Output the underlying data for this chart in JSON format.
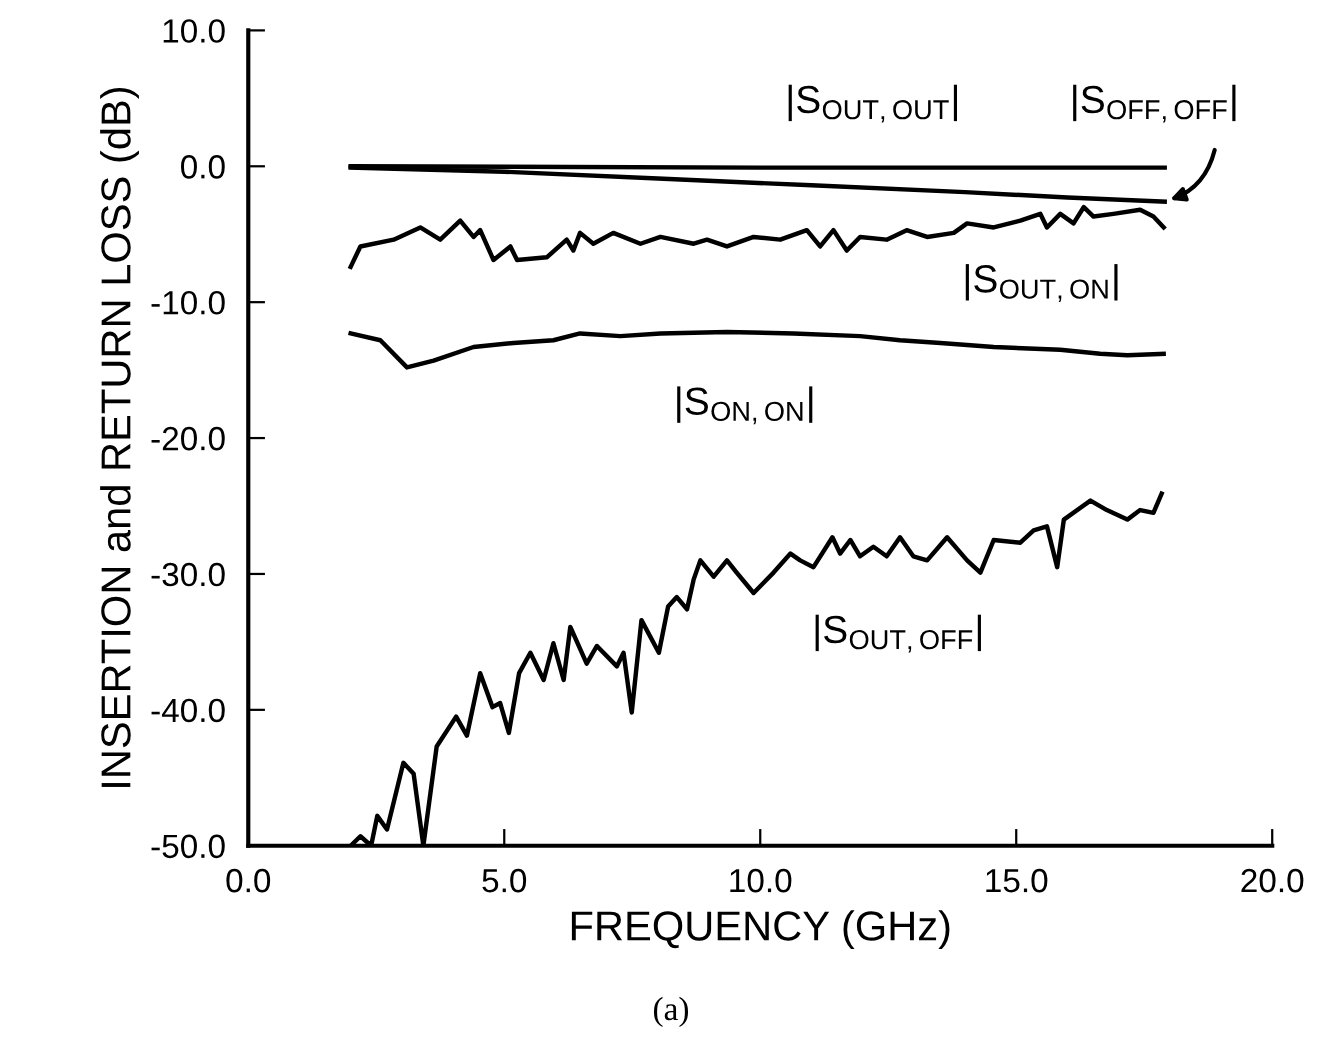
{
  "chart_data": {
    "type": "line",
    "xlabel": "FREQUENCY (GHz)",
    "ylabel": "INSERTION and RETURN LOSS (dB)",
    "xlim": [
      0,
      20
    ],
    "ylim": [
      -50,
      10
    ],
    "xticks": [
      {
        "value": 0,
        "label": "0.0"
      },
      {
        "value": 5,
        "label": "5.0"
      },
      {
        "value": 10,
        "label": "10.0"
      },
      {
        "value": 15,
        "label": "15.0"
      },
      {
        "value": 20,
        "label": "20.0"
      }
    ],
    "yticks": [
      {
        "value": -50,
        "label": "-50.0"
      },
      {
        "value": -40,
        "label": "-40.0"
      },
      {
        "value": -30,
        "label": "-30.0"
      },
      {
        "value": -20,
        "label": "-20.0"
      },
      {
        "value": -10,
        "label": "-10.0"
      },
      {
        "value": 0,
        "label": "0.0"
      },
      {
        "value": 10,
        "label": "10.0"
      }
    ],
    "grid": false,
    "legend": false,
    "marker": "none",
    "line_style": "solid",
    "series": [
      {
        "name": "|S$_{OUT,OUT}$|",
        "color": "#000000",
        "x": [
          2.0,
          10.0,
          17.9
        ],
        "values": [
          0.0,
          -0.1,
          -0.1
        ]
      },
      {
        "name": "|S$_{OFF,OFF}$|",
        "color": "#000000",
        "x": [
          2.0,
          5.0,
          8.0,
          11.0,
          14.0,
          16.0,
          17.9
        ],
        "values": [
          -0.1,
          -0.4,
          -0.9,
          -1.4,
          -1.9,
          -2.3,
          -2.6
        ]
      },
      {
        "name": "|S$_{OUT,ON}$|",
        "color": "#000000",
        "x": [
          2.0,
          2.19,
          2.84,
          3.36,
          3.75,
          4.14,
          4.4,
          4.53,
          4.79,
          5.12,
          5.25,
          5.83,
          6.22,
          6.35,
          6.48,
          6.74,
          7.13,
          7.66,
          8.05,
          8.7,
          8.96,
          9.35,
          9.87,
          10.39,
          10.91,
          11.17,
          11.43,
          11.69,
          11.95,
          12.47,
          12.86,
          13.26,
          13.78,
          14.04,
          14.56,
          15.08,
          15.47,
          15.6,
          15.86,
          16.12,
          16.32,
          16.51,
          16.9,
          17.42,
          17.68,
          17.88
        ],
        "values": [
          -7.4,
          -5.9,
          -5.4,
          -4.5,
          -5.4,
          -4.0,
          -5.2,
          -4.7,
          -6.9,
          -5.9,
          -6.9,
          -6.7,
          -5.4,
          -6.2,
          -4.9,
          -5.7,
          -4.9,
          -5.7,
          -5.2,
          -5.7,
          -5.4,
          -5.9,
          -5.2,
          -5.4,
          -4.7,
          -5.9,
          -4.7,
          -6.2,
          -5.2,
          -5.4,
          -4.7,
          -5.2,
          -4.9,
          -4.2,
          -4.5,
          -4.0,
          -3.5,
          -4.5,
          -3.5,
          -4.2,
          -3.0,
          -3.7,
          -3.5,
          -3.2,
          -3.7,
          -4.5
        ]
      },
      {
        "name": "|S$_{ON,ON}$|",
        "color": "#000000",
        "x": [
          2.0,
          2.58,
          3.1,
          3.62,
          4.4,
          5.18,
          5.96,
          6.48,
          7.27,
          8.05,
          9.35,
          10.65,
          11.95,
          12.73,
          13.52,
          14.56,
          15.86,
          16.64,
          17.17,
          17.88
        ],
        "values": [
          -12.3,
          -12.8,
          -14.8,
          -14.3,
          -13.3,
          -13.0,
          -12.8,
          -12.3,
          -12.5,
          -12.3,
          -12.2,
          -12.3,
          -12.5,
          -12.8,
          -13.0,
          -13.3,
          -13.5,
          -13.8,
          -13.9,
          -13.8
        ]
      },
      {
        "name": "|S$_{OUT,OFF}$|",
        "color": "#000000",
        "x": [
          2.0,
          2.19,
          2.4,
          2.52,
          2.71,
          3.03,
          3.23,
          3.42,
          3.68,
          4.06,
          4.27,
          4.53,
          4.77,
          4.92,
          5.09,
          5.29,
          5.51,
          5.77,
          5.96,
          6.16,
          6.29,
          6.61,
          6.81,
          7.2,
          7.33,
          7.49,
          7.68,
          8.02,
          8.2,
          8.37,
          8.57,
          8.7,
          8.83,
          9.09,
          9.35,
          9.54,
          9.87,
          10.26,
          10.59,
          10.78,
          11.04,
          11.41,
          11.56,
          11.76,
          11.95,
          12.21,
          12.47,
          12.73,
          12.99,
          13.26,
          13.65,
          14.04,
          14.3,
          14.56,
          15.08,
          15.34,
          15.6,
          15.8,
          15.93,
          16.45,
          16.77,
          17.17,
          17.42,
          17.68,
          17.84
        ],
        "values": [
          -50.0,
          -49.3,
          -50.0,
          -47.8,
          -48.8,
          -43.9,
          -44.7,
          -50.0,
          -42.7,
          -40.5,
          -41.9,
          -37.3,
          -39.8,
          -39.5,
          -41.7,
          -37.3,
          -35.8,
          -37.8,
          -35.1,
          -37.8,
          -33.9,
          -36.6,
          -35.3,
          -36.8,
          -35.8,
          -40.2,
          -33.4,
          -35.8,
          -32.4,
          -31.7,
          -32.6,
          -30.4,
          -29.0,
          -30.2,
          -29.0,
          -29.9,
          -31.4,
          -29.9,
          -28.5,
          -29.0,
          -29.5,
          -27.3,
          -28.5,
          -27.5,
          -28.7,
          -28.0,
          -28.7,
          -27.3,
          -28.7,
          -29.0,
          -27.3,
          -29.0,
          -29.9,
          -27.5,
          -27.7,
          -26.8,
          -26.5,
          -29.5,
          -26.0,
          -24.6,
          -25.3,
          -26.0,
          -25.3,
          -25.5,
          -24.1
        ]
      }
    ],
    "annotations": [
      "(a)"
    ]
  }
}
